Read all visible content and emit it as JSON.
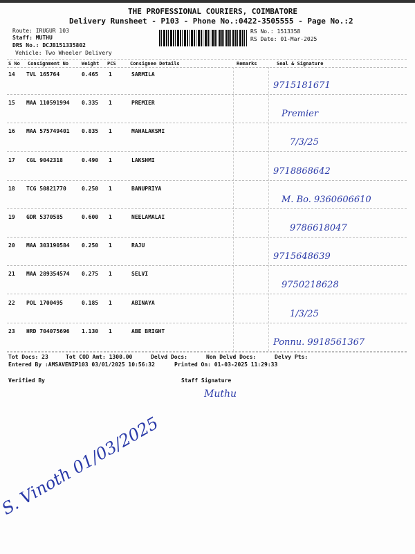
{
  "header": {
    "company": "THE PROFESSIONAL COURIERS, COIMBATORE",
    "title": "Delivery Runsheet - P103 - Phone No.:0422-3505555 - Page No.:2",
    "route": "Route: IRUGUR 103",
    "staff": "Staff: MUTHU",
    "drs": "DRS No.: DCJB151335802",
    "vehicle": "Vehicle: Two Wheeler Delivery",
    "rs_no": "RS No.: 1513358",
    "rs_date": "RS Date: 01-Mar-2025"
  },
  "columns": [
    "S No",
    "Consignment No",
    "Weight",
    "PCS",
    "Consignee Details",
    "Remarks",
    "Seal & Signature"
  ],
  "rows": [
    {
      "sno": "14",
      "cn": "TVL 165764",
      "wt": "0.465",
      "pcs": "1",
      "name": "SARMILA",
      "hw": "9715181671"
    },
    {
      "sno": "15",
      "cn": "MAA 110591994",
      "wt": "0.335",
      "pcs": "1",
      "name": "PREMIER",
      "hw": "Premier"
    },
    {
      "sno": "16",
      "cn": "MAA 575749401",
      "wt": "0.835",
      "pcs": "1",
      "name": "MAHALAKSMI",
      "hw": "7/3/25"
    },
    {
      "sno": "17",
      "cn": "CGL 9042318",
      "wt": "0.490",
      "pcs": "1",
      "name": "LAKSHMI",
      "hw": "9718868642"
    },
    {
      "sno": "18",
      "cn": "TCG 50821770",
      "wt": "0.250",
      "pcs": "1",
      "name": "BANUPRIYA",
      "hw": "M. Bo. 9360606610"
    },
    {
      "sno": "19",
      "cn": "GDR 5370585",
      "wt": "0.600",
      "pcs": "1",
      "name": "NEELAMALAI",
      "hw": "9786618047"
    },
    {
      "sno": "20",
      "cn": "MAA 303190584",
      "wt": "0.250",
      "pcs": "1",
      "name": "RAJU",
      "hw": "9715648639"
    },
    {
      "sno": "21",
      "cn": "MAA 289354574",
      "wt": "0.275",
      "pcs": "1",
      "name": "SELVI",
      "hw": "9750218628"
    },
    {
      "sno": "22",
      "cn": "POL 1700495",
      "wt": "0.185",
      "pcs": "1",
      "name": "ABINAYA",
      "hw": "1/3/25"
    },
    {
      "sno": "23",
      "cn": "HRD 704075696",
      "wt": "1.130",
      "pcs": "1",
      "name": "ABE BRIGHT",
      "hw": "Ponnu. 9918561367"
    }
  ],
  "footer": {
    "tot_docs": "Tot Docs:  23",
    "cod": "Tot COD Amt: 1300.00",
    "delvd": "Delvd Docs:",
    "non_delvd": "Non Delvd Docs:",
    "pts": "Delvy Pts:",
    "entered": "Entered By :AMSAVENIP103 03/01/2025 10:56:32",
    "printed": "Printed On: 01-03-2025 11:29:33",
    "verified": "Verified By",
    "staff_sig": "Staff Signature",
    "verified_hw": "S. Vinoth 01/03/2025",
    "staff_hw": "Muthu"
  }
}
